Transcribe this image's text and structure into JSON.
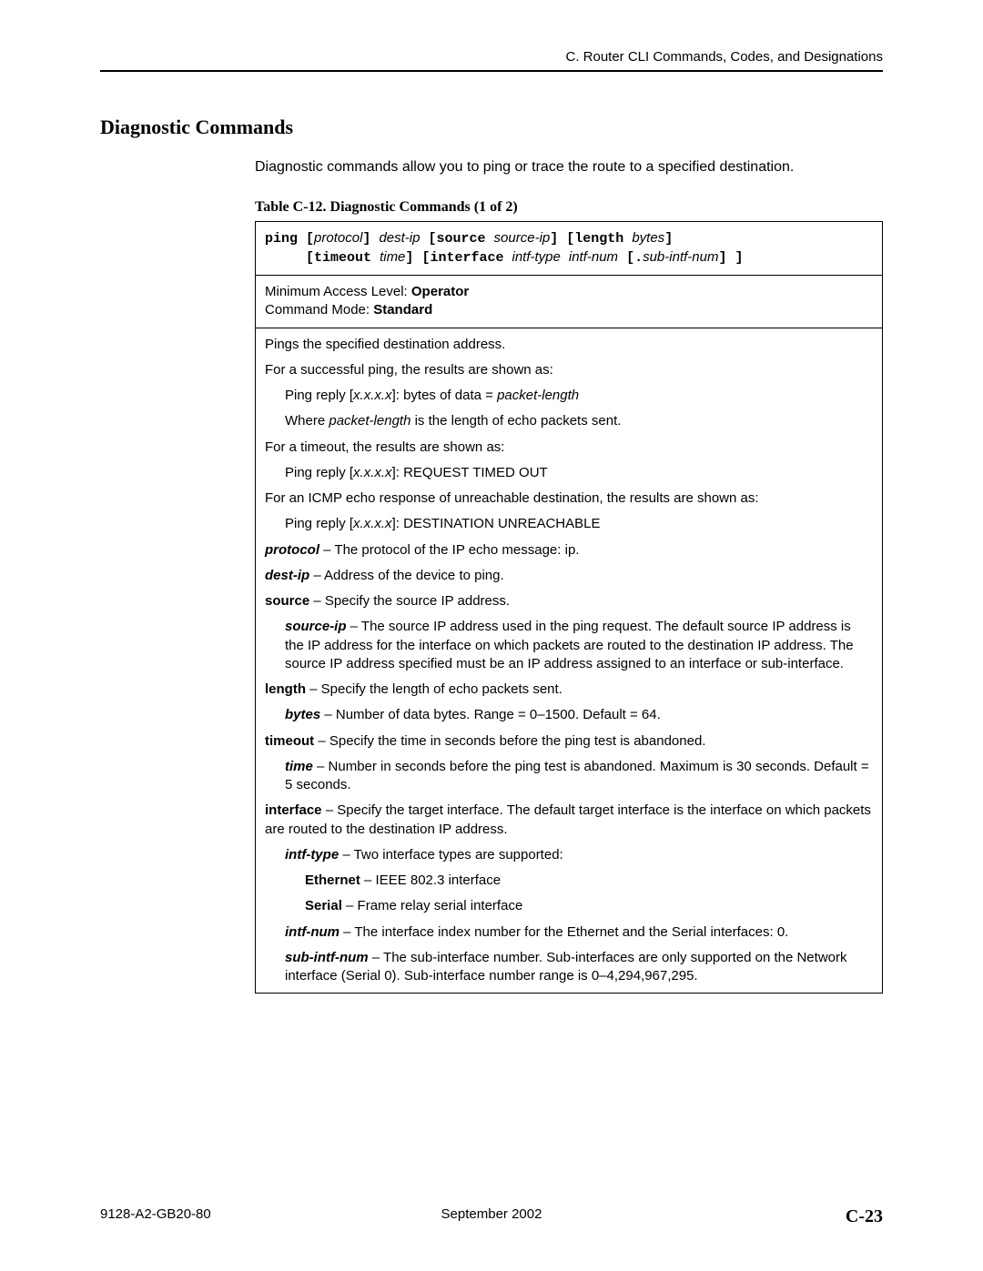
{
  "header": {
    "right": "C. Router CLI Commands, Codes, and Designations"
  },
  "section_title": "Diagnostic Commands",
  "intro": "Diagnostic commands allow you to ping or trace the route to a specified destination.",
  "table_caption": "Table C-12.  Diagnostic Commands (1 of 2)",
  "syntax": {
    "ping": "ping",
    "protocol": "protocol",
    "dest_ip": "dest-ip",
    "source": "source",
    "source_ip": "source-ip",
    "length": "length",
    "bytes": "bytes",
    "timeout": "timeout",
    "time": "time",
    "interface": "interface",
    "intf_type": "intf-type",
    "intf_num": "intf-num",
    "sub_intf_num": "sub-intf-num",
    "lbr": "[",
    "rbr": "]",
    "dot": "."
  },
  "meta": {
    "access_label": "Minimum Access Level: ",
    "access_value": "Operator",
    "mode_label": "Command Mode: ",
    "mode_value": "Standard"
  },
  "body": {
    "p1": "Pings the specified destination address.",
    "p2": "For a successful ping, the results are shown as:",
    "p3a": "Ping reply [",
    "p3b": "x.x.x.x",
    "p3c": "]: bytes of data = ",
    "p3d": "packet-length",
    "p4a": "Where ",
    "p4b": "packet-length",
    "p4c": " is the length of echo packets sent.",
    "p5": "For a timeout, the results are shown as:",
    "p6a": "Ping reply [",
    "p6b": "x.x.x.x",
    "p6c": "]: REQUEST TIMED OUT",
    "p7": "For an ICMP echo response of unreachable destination, the results are shown as:",
    "p8a": "Ping reply [",
    "p8b": "x.x.x.x",
    "p8c": "]: DESTINATION UNREACHABLE",
    "protocol_label": "protocol",
    "protocol_text": " – The protocol of the IP echo message: ip.",
    "destip_label": "dest-ip",
    "destip_text": " – Address of the device to ping.",
    "source_label": "source",
    "source_text": " – Specify the source IP address.",
    "sourceip_label": "source-ip",
    "sourceip_text": " – The source IP address used in the ping request. The default source IP address is the IP address for the interface on which packets are routed to the destination IP address. The source IP address specified must be an IP address assigned to an interface or sub-interface.",
    "length_label": "length",
    "length_text": " – Specify the length of echo packets sent.",
    "bytes_label": "bytes",
    "bytes_text": " – Number of data bytes. Range = 0–1500. Default = 64.",
    "timeout_label": "timeout",
    "timeout_text": " – Specify the time in seconds before the ping test is abandoned.",
    "time_label": "time",
    "time_text": " – Number in seconds before the ping test is abandoned. Maximum is 30 seconds. Default = 5 seconds.",
    "interface_label": "interface",
    "interface_text": " – Specify the target interface. The default target interface is the interface on which packets are routed to the destination IP address.",
    "intftype_label": "intf-type",
    "intftype_text": " – Two interface types are supported:",
    "ethernet_label": "Ethernet",
    "ethernet_text": " – IEEE 802.3 interface",
    "serial_label": "Serial",
    "serial_text": " – Frame relay serial interface",
    "intfnum_label": "intf-num",
    "intfnum_text": " – The interface index number for the Ethernet and the Serial interfaces: 0.",
    "subintf_label": "sub-intf-num",
    "subintf_text": " – The sub-interface number. Sub-interfaces are only supported on the Network interface (Serial 0). Sub-interface number range is 0–4,294,967,295."
  },
  "footer": {
    "left": "9128-A2-GB20-80",
    "center": "September 2002",
    "right": "C-23"
  }
}
